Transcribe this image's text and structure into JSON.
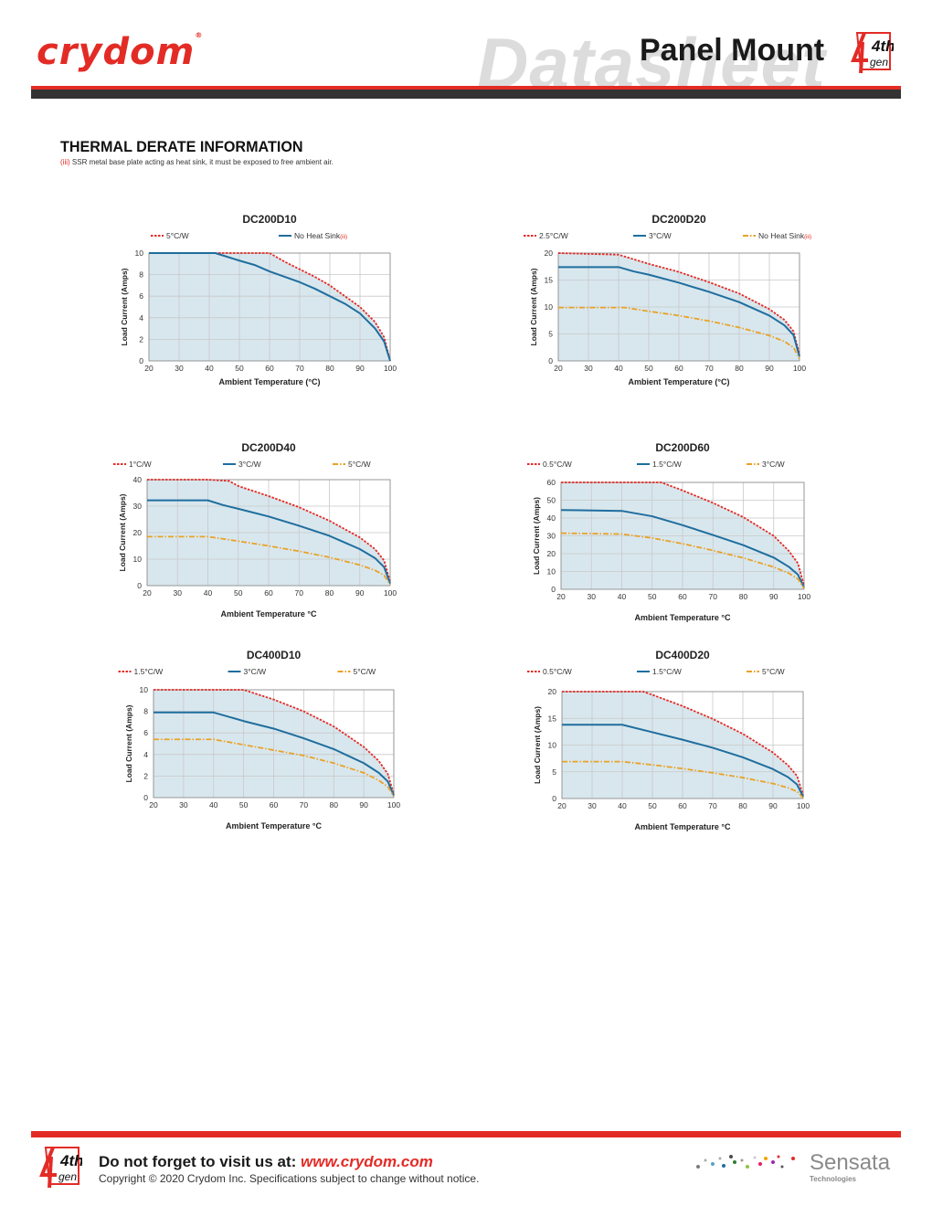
{
  "header": {
    "brand": "crydom",
    "brand_mark": "®",
    "watermark": "Datasheet",
    "title": "Panel Mount",
    "badge_top": "4th",
    "badge_bottom": "gen"
  },
  "section": {
    "title": "THERMAL DERATE INFORMATION",
    "note_ref": "(iii)",
    "note_text": " SSR metal base plate acting as heat sink, it must be exposed to free ambient air."
  },
  "colors": {
    "red": "#e32b26",
    "blue": "#1f6e9e",
    "orange": "#eaa227",
    "fill": "#d8e7ee",
    "grid": "#c8c8c8"
  },
  "chart_data": [
    {
      "type": "line",
      "title": "DC200D10",
      "xlabel": "Ambient Temperature (°C)",
      "ylabel": "Load Current (Amps)",
      "xlim": [
        20,
        100
      ],
      "ylim": [
        0,
        10
      ],
      "xticks": [
        20,
        30,
        40,
        50,
        60,
        70,
        80,
        90,
        100
      ],
      "yticks": [
        0,
        2,
        4,
        6,
        8,
        10
      ],
      "series": [
        {
          "name": "5°C/W",
          "color": "red",
          "style": "dotted",
          "x": [
            20,
            60,
            65,
            70,
            75,
            80,
            85,
            90,
            95,
            98,
            100
          ],
          "y": [
            10,
            10,
            9.2,
            8.5,
            7.8,
            7.0,
            6.0,
            5.0,
            3.6,
            2.2,
            0
          ]
        },
        {
          "name": "No Heat Sink",
          "suffix": "(iii)",
          "color": "blue",
          "style": "solid",
          "x": [
            20,
            42,
            50,
            55,
            60,
            65,
            70,
            75,
            80,
            85,
            90,
            95,
            98,
            100
          ],
          "y": [
            10,
            10,
            9.3,
            8.9,
            8.3,
            7.8,
            7.3,
            6.7,
            6.0,
            5.3,
            4.4,
            3.0,
            1.8,
            0
          ]
        }
      ]
    },
    {
      "type": "line",
      "title": "DC200D20",
      "xlabel": "Ambient Temperature (°C)",
      "ylabel": "Load Current (Amps)",
      "xlim": [
        20,
        100
      ],
      "ylim": [
        0,
        20
      ],
      "xticks": [
        20,
        30,
        40,
        50,
        60,
        70,
        80,
        90,
        100
      ],
      "yticks": [
        0,
        5,
        10,
        15,
        20
      ],
      "series": [
        {
          "name": "2.5°C/W",
          "color": "red",
          "style": "dotted",
          "x": [
            20,
            40,
            50,
            60,
            70,
            80,
            90,
            95,
            98,
            100
          ],
          "y": [
            20,
            19.7,
            18,
            16.5,
            14.6,
            12.5,
            9.6,
            7.6,
            5.5,
            1.2
          ]
        },
        {
          "name": "3°C/W",
          "color": "blue",
          "style": "solid",
          "x": [
            20,
            40,
            45,
            50,
            60,
            70,
            80,
            90,
            95,
            98,
            100
          ],
          "y": [
            17.4,
            17.4,
            16.6,
            16.0,
            14.5,
            12.8,
            10.9,
            8.4,
            6.6,
            4.8,
            0.8
          ]
        },
        {
          "name": "No Heat Sink",
          "suffix": "(iii)",
          "color": "orange",
          "style": "dashdot",
          "x": [
            20,
            42,
            50,
            60,
            70,
            80,
            90,
            95,
            98,
            100
          ],
          "y": [
            9.9,
            9.9,
            9.2,
            8.4,
            7.4,
            6.2,
            4.7,
            3.6,
            2.5,
            0.4
          ]
        }
      ]
    },
    {
      "type": "line",
      "title": "DC200D40",
      "xlabel": "Ambient Temperature °C",
      "ylabel": "Load Current (Amps)",
      "xlim": [
        20,
        100
      ],
      "ylim": [
        0,
        40
      ],
      "xticks": [
        20,
        30,
        40,
        50,
        60,
        70,
        80,
        90,
        100
      ],
      "yticks": [
        0,
        10,
        20,
        30,
        40
      ],
      "series": [
        {
          "name": "1°C/W",
          "color": "red",
          "style": "dotted",
          "x": [
            20,
            40,
            47,
            50,
            60,
            70,
            80,
            90,
            95,
            98,
            100
          ],
          "y": [
            40,
            40,
            39.5,
            37.6,
            33.8,
            29.6,
            24.5,
            18.2,
            13.8,
            9.5,
            1.5
          ]
        },
        {
          "name": "3°C/W",
          "color": "blue",
          "style": "solid",
          "x": [
            20,
            40,
            45,
            50,
            60,
            70,
            80,
            90,
            95,
            98,
            100
          ],
          "y": [
            32.2,
            32.2,
            30.4,
            29.0,
            26.1,
            22.6,
            18.8,
            13.8,
            10.4,
            7.0,
            0.8
          ]
        },
        {
          "name": "5°C/W",
          "color": "orange",
          "style": "dashdot",
          "x": [
            20,
            40,
            50,
            60,
            70,
            80,
            90,
            95,
            98,
            100
          ],
          "y": [
            18.5,
            18.5,
            16.8,
            15.0,
            13.0,
            10.7,
            7.8,
            5.8,
            3.9,
            0.4
          ]
        }
      ]
    },
    {
      "type": "line",
      "title": "DC200D60",
      "xlabel": "Ambient Temperature °C",
      "ylabel": "Load Current (Amps)",
      "xlim": [
        20,
        100
      ],
      "ylim": [
        0,
        60
      ],
      "xticks": [
        20,
        30,
        40,
        50,
        60,
        70,
        80,
        90,
        100
      ],
      "yticks": [
        0,
        10,
        20,
        30,
        40,
        50,
        60
      ],
      "series": [
        {
          "name": "0.5°C/W",
          "color": "red",
          "style": "dotted",
          "x": [
            20,
            53,
            60,
            70,
            80,
            90,
            95,
            98,
            100
          ],
          "y": [
            60,
            60,
            55.5,
            48.5,
            40.5,
            30.0,
            21.5,
            14.5,
            2.0
          ]
        },
        {
          "name": "1.5°C/W",
          "color": "blue",
          "style": "solid",
          "x": [
            20,
            40,
            50,
            60,
            70,
            80,
            90,
            95,
            98,
            100
          ],
          "y": [
            44.5,
            44.0,
            41.0,
            36.0,
            30.5,
            24.8,
            17.8,
            12.6,
            8.2,
            1.0
          ]
        },
        {
          "name": "3°C/W",
          "color": "orange",
          "style": "dashdot",
          "x": [
            20,
            40,
            50,
            60,
            70,
            80,
            90,
            95,
            98,
            100
          ],
          "y": [
            31.5,
            31.0,
            28.8,
            25.6,
            21.8,
            17.6,
            12.5,
            9.0,
            5.8,
            0.5
          ]
        }
      ]
    },
    {
      "type": "line",
      "title": "DC400D10",
      "xlabel": "Ambient Temperature °C",
      "ylabel": "Load Current (Amps)",
      "xlim": [
        20,
        100
      ],
      "ylim": [
        0,
        10
      ],
      "xticks": [
        20,
        30,
        40,
        50,
        60,
        70,
        80,
        90,
        100
      ],
      "yticks": [
        0,
        2,
        4,
        6,
        8,
        10
      ],
      "series": [
        {
          "name": "1.5°C/W",
          "color": "red",
          "style": "dotted",
          "x": [
            20,
            50,
            60,
            70,
            80,
            90,
            95,
            98,
            100
          ],
          "y": [
            10,
            10,
            9.1,
            8.0,
            6.6,
            4.7,
            3.4,
            2.2,
            0.3
          ]
        },
        {
          "name": "3°C/W",
          "color": "blue",
          "style": "solid",
          "x": [
            20,
            40,
            50,
            60,
            70,
            80,
            90,
            95,
            98,
            100
          ],
          "y": [
            7.9,
            7.9,
            7.1,
            6.4,
            5.5,
            4.5,
            3.2,
            2.3,
            1.5,
            0.2
          ]
        },
        {
          "name": "5°C/W",
          "color": "orange",
          "style": "dashdot",
          "x": [
            20,
            40,
            50,
            60,
            70,
            80,
            90,
            95,
            98,
            100
          ],
          "y": [
            5.4,
            5.4,
            4.9,
            4.4,
            3.9,
            3.2,
            2.3,
            1.6,
            1.0,
            0.1
          ]
        }
      ]
    },
    {
      "type": "line",
      "title": "DC400D20",
      "xlabel": "Ambient Temperature °C",
      "ylabel": "Load Current (Amps)",
      "xlim": [
        20,
        100
      ],
      "ylim": [
        0,
        20
      ],
      "xticks": [
        20,
        30,
        40,
        50,
        60,
        70,
        80,
        90,
        100
      ],
      "yticks": [
        0,
        5,
        10,
        15,
        20
      ],
      "series": [
        {
          "name": "0.5°C/W",
          "color": "red",
          "style": "dotted",
          "x": [
            20,
            47,
            50,
            60,
            70,
            80,
            90,
            95,
            98,
            100
          ],
          "y": [
            20,
            20,
            19.4,
            17.3,
            14.9,
            12.1,
            8.6,
            6.2,
            4.2,
            0.6
          ]
        },
        {
          "name": "1.5°C/W",
          "color": "blue",
          "style": "solid",
          "x": [
            20,
            40,
            50,
            60,
            70,
            80,
            90,
            95,
            98,
            100
          ],
          "y": [
            13.8,
            13.8,
            12.4,
            11.0,
            9.5,
            7.7,
            5.5,
            4.0,
            2.6,
            0.3
          ]
        },
        {
          "name": "5°C/W",
          "color": "orange",
          "style": "dashdot",
          "x": [
            20,
            40,
            50,
            60,
            70,
            80,
            90,
            95,
            98,
            100
          ],
          "y": [
            6.9,
            6.9,
            6.3,
            5.6,
            4.8,
            3.9,
            2.8,
            2.0,
            1.3,
            0.1
          ]
        }
      ]
    }
  ],
  "footer": {
    "reminder": "Do not forget to visit us at: ",
    "url": "www.crydom.com",
    "copyright": "Copyright © 2020 Crydom Inc. Specifications subject to change without notice.",
    "partner": "Sensata",
    "partner_sub": "Technologies"
  }
}
